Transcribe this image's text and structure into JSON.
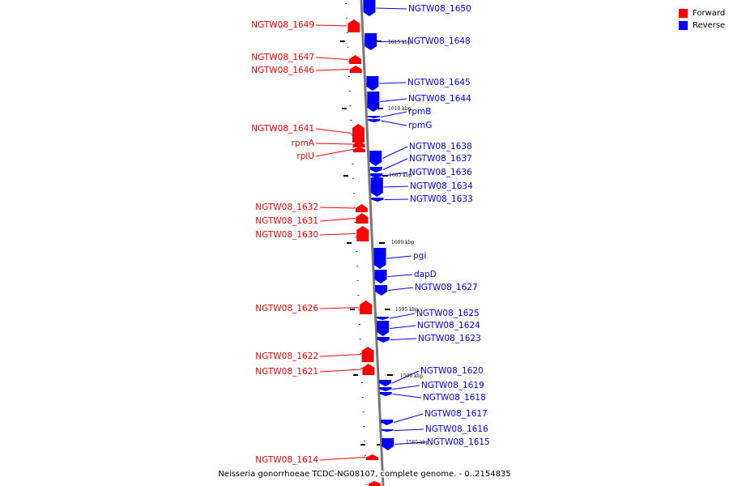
{
  "colors": {
    "forward": "#ff0000",
    "reverse": "#0000ff",
    "axis": "#777777"
  },
  "legend": [
    {
      "label": "Forward",
      "color": "#ff0000"
    },
    {
      "label": "Reverse",
      "color": "#0000ff"
    }
  ],
  "caption": "Neisseria gonorrhoeae TCDC-NG08107, complete genome. - 0..2154835",
  "scale_labels": [
    "1615 kbp",
    "1610 kbp",
    "1605 kbp",
    "1600 kbp",
    "1595 kbp",
    "1590 kbp",
    "1585 kbp"
  ],
  "forward_genes": [
    "NGTW08_1649",
    "NGTW08_1647",
    "NGTW08_1646",
    "NGTW08_1641",
    "rpmA",
    "rplU",
    "NGTW08_1632",
    "NGTW08_1631",
    "NGTW08_1630",
    "NGTW08_1626",
    "NGTW08_1622",
    "NGTW08_1621",
    "NGTW08_1614"
  ],
  "reverse_genes": [
    "NGTW08_1650",
    "NGTW08_1648",
    "NGTW08_1645",
    "NGTW08_1644",
    "rpmB",
    "rpmG",
    "NGTW08_1638",
    "NGTW08_1637",
    "NGTW08_1636",
    "NGTW08_1634",
    "NGTW08_1633",
    "pgi",
    "dapD",
    "NGTW08_1627",
    "NGTW08_1625",
    "NGTW08_1624",
    "NGTW08_1623",
    "NGTW08_1620",
    "NGTW08_1619",
    "NGTW08_1618",
    "NGTW08_1617",
    "NGTW08_1616",
    "NGTW08_1615"
  ]
}
